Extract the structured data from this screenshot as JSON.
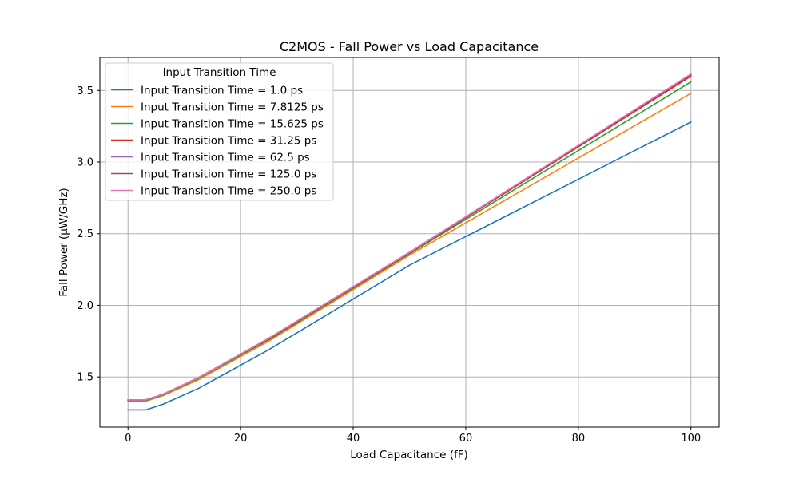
{
  "chart_data": {
    "type": "line",
    "title": "C2MOS - Fall Power vs Load Capacitance",
    "xlabel": "Load Capacitance (fF)",
    "ylabel": "Fall Power (µW/GHz)",
    "xlim": [
      -5,
      105
    ],
    "ylim": [
      1.15,
      3.73
    ],
    "xticks": [
      0,
      20,
      40,
      60,
      80,
      100
    ],
    "yticks": [
      1.5,
      2.0,
      2.5,
      3.0,
      3.5
    ],
    "xtick_labels": [
      "0",
      "20",
      "40",
      "60",
      "80",
      "100"
    ],
    "ytick_labels": [
      "1.5",
      "2.0",
      "2.5",
      "3.0",
      "3.5"
    ],
    "grid": true,
    "legend_title": "Input Transition Time",
    "legend_position": "top-left",
    "x": [
      0,
      3.125,
      6.25,
      12.5,
      25,
      50,
      100
    ],
    "series": [
      {
        "name": "Input Transition Time = 1.0 ps",
        "color": "#1f77b4",
        "values": [
          1.27,
          1.27,
          1.31,
          1.42,
          1.69,
          2.28,
          3.28
        ]
      },
      {
        "name": "Input Transition Time = 7.8125 ps",
        "color": "#ff7f0e",
        "values": [
          1.33,
          1.33,
          1.37,
          1.48,
          1.75,
          2.35,
          3.48
        ]
      },
      {
        "name": "Input Transition Time = 15.625 ps",
        "color": "#2ca02c",
        "values": [
          1.335,
          1.335,
          1.375,
          1.49,
          1.76,
          2.36,
          3.56
        ]
      },
      {
        "name": "Input Transition Time = 31.25 ps",
        "color": "#d62728",
        "values": [
          1.34,
          1.34,
          1.38,
          1.495,
          1.765,
          2.365,
          3.6
        ]
      },
      {
        "name": "Input Transition Time = 62.5 ps",
        "color": "#9467bd",
        "values": [
          1.34,
          1.34,
          1.38,
          1.495,
          1.77,
          2.37,
          3.61
        ]
      },
      {
        "name": "Input Transition Time = 125.0 ps",
        "color": "#8c564b",
        "values": [
          1.34,
          1.34,
          1.38,
          1.495,
          1.77,
          2.37,
          3.61
        ]
      },
      {
        "name": "Input Transition Time = 250.0 ps",
        "color": "#e377c2",
        "values": [
          1.34,
          1.34,
          1.38,
          1.495,
          1.77,
          2.37,
          3.615
        ]
      }
    ]
  }
}
